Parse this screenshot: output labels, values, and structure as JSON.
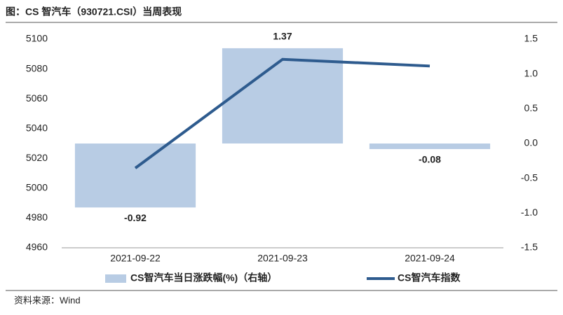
{
  "chart_data": {
    "type": "bar",
    "title": "图：CS 智汽车（930721.CSI）当周表现",
    "source": "资料来源：Wind",
    "categories": [
      "2021-09-22",
      "2021-09-23",
      "2021-09-24"
    ],
    "series": [
      {
        "name": "CS智汽车当日涨跌幅(%)（右轴）",
        "type": "bar",
        "axis": "y2",
        "color": "#b8cce4",
        "label_color": "#e8000b",
        "values": [
          -0.92,
          1.37,
          -0.08
        ]
      },
      {
        "name": "CS智汽车指数",
        "type": "line",
        "axis": "y",
        "color": "#2e5b8e",
        "values": [
          5013.5,
          5086.5,
          5082
        ]
      }
    ],
    "ylim": [
      4960,
      5100
    ],
    "yticks": [
      4960,
      4980,
      5000,
      5020,
      5040,
      5060,
      5080,
      5100
    ],
    "y2lim": [
      -1.5,
      1.5
    ],
    "y2ticks": [
      -1.5,
      {
        "value": -1,
        "label": "-1.0"
      },
      -0.5,
      {
        "value": 0,
        "label": "0.0"
      },
      0.5,
      {
        "value": 1,
        "label": "1.0"
      },
      1.5
    ],
    "grid": false
  }
}
